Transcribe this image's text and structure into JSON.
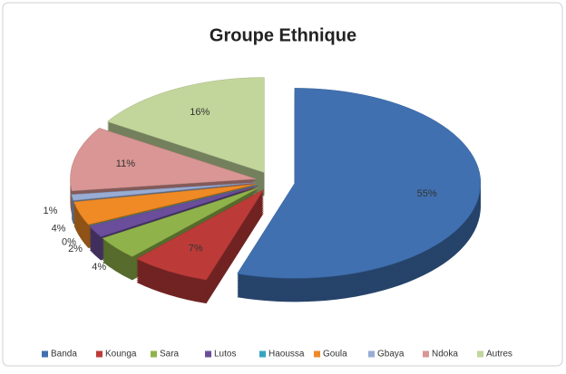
{
  "chart_data": {
    "type": "pie",
    "title": "Groupe Ethnique",
    "categories": [
      "Banda",
      "Kounga",
      "Sara",
      "Lutos",
      "Haoussa",
      "Goula",
      "Gbaya",
      "Ndoka",
      "Autres"
    ],
    "values": [
      55,
      7,
      4,
      2,
      0,
      4,
      1,
      11,
      16
    ],
    "value_labels": [
      "55%",
      "7%",
      "4%",
      "2%",
      "0%",
      "4%",
      "1%",
      "11%",
      "16%"
    ],
    "colors": [
      "#4070b0",
      "#bc3b38",
      "#8fb34a",
      "#6a4e9b",
      "#36a3c2",
      "#ef8a25",
      "#98acd4",
      "#d99694",
      "#c2d69b"
    ],
    "legend": "bottom"
  }
}
